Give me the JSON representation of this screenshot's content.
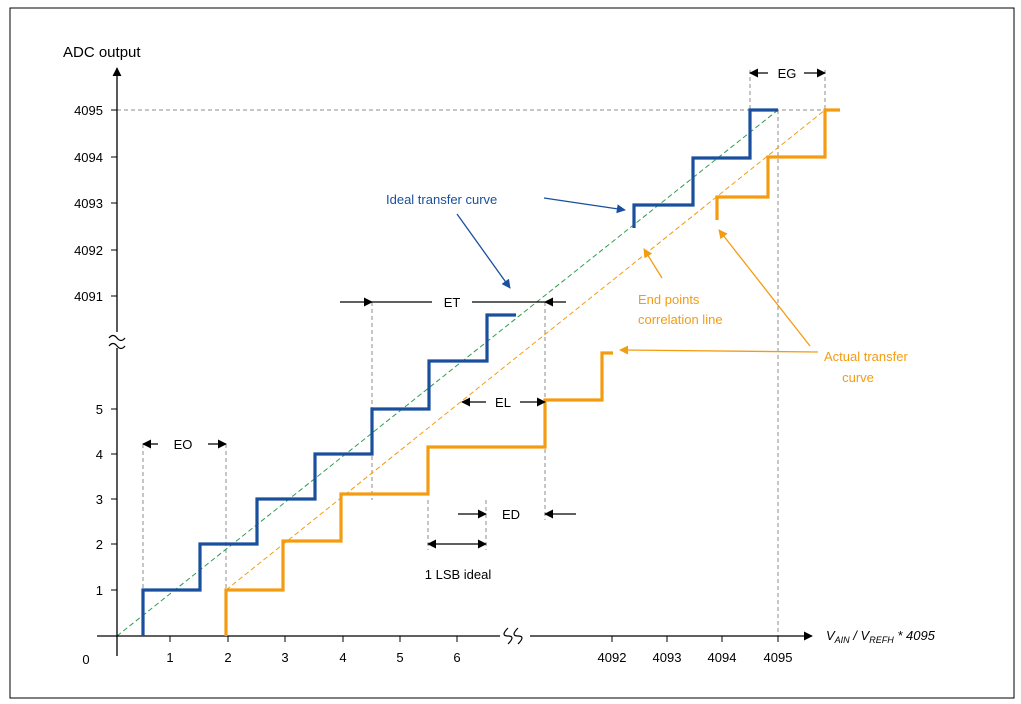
{
  "colors": {
    "ideal": "#1a4f9e",
    "actual": "#f39c12",
    "ideal_diagonal": "#2e9e4f",
    "endpoint_line": "#f39c12",
    "guide": "#8c8c8c"
  },
  "axes": {
    "y_title": "ADC output",
    "origin": "0",
    "x_title_v": "V",
    "x_title_sub1": "AIN",
    "x_title_mid": " / V",
    "x_title_sub2": "REFH",
    "x_title_tail": " * 4095",
    "x_ticks_low": [
      "1",
      "2",
      "3",
      "4",
      "5",
      "6"
    ],
    "x_ticks_high": [
      "4092",
      "4093",
      "4094",
      "4095"
    ],
    "y_ticks_low": [
      "1",
      "2",
      "3",
      "4",
      "5"
    ],
    "y_ticks_high": [
      "4091",
      "4092",
      "4093",
      "4094",
      "4095"
    ]
  },
  "labels": {
    "ideal_curve": "Ideal transfer curve",
    "end_points_1": "End points",
    "end_points_2": "correlation line",
    "actual_1": "Actual transfer",
    "actual_2": "curve"
  },
  "errors": {
    "eo": "EO",
    "et": "ET",
    "el": "EL",
    "ed": "ED",
    "eg": "EG",
    "lsb": "1 LSB ideal"
  }
}
